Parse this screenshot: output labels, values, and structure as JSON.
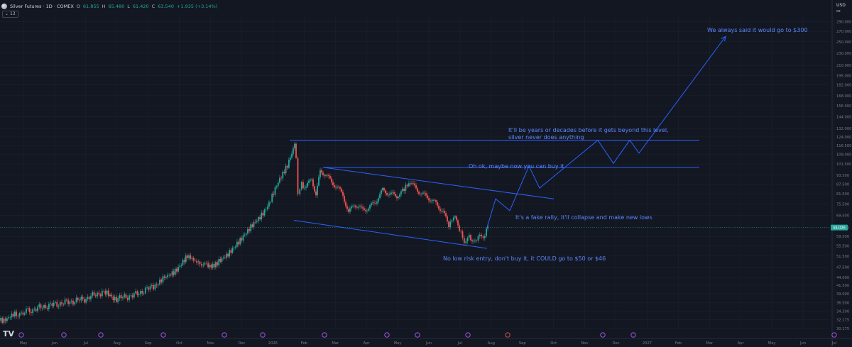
{
  "legend": {
    "title": "Silver Futures · 1D · COMEX",
    "o_label": "O",
    "o_value": "61.855",
    "h_label": "H",
    "h_value": "65.480",
    "l_label": "L",
    "l_value": "61.420",
    "c_label": "C",
    "c_value": "63.540",
    "change": "+1.935 (+3.14%)"
  },
  "volume_pill": "13",
  "price_axis": {
    "currency": "USD",
    "unit": "oz",
    "last_price_label": "SILO26"
  },
  "colors": {
    "background": "#131722",
    "up": "#26a69a",
    "down": "#ef5350",
    "annotation": "#2962ff",
    "annotation_text": "#5b87ff",
    "axis_text": "#787b86",
    "grid": "#1e222d",
    "event_marker": "#b45cff"
  },
  "chart_data": {
    "type": "candlestick",
    "title": "Silver Futures · 1D · COMEX",
    "y_scale": "log",
    "ylim": [
      30.175,
      300.0
    ],
    "y_ticks": [
      30.175,
      32.175,
      34.3,
      36.5,
      39.0,
      41.5,
      44.0,
      47.5,
      51.5,
      55.5,
      59.5,
      63.5,
      69.5,
      75.5,
      81.5,
      87.5,
      93.5,
      101.5,
      109.0,
      116.5,
      124.0,
      132.0,
      144.0,
      156.0,
      168.0,
      182.0,
      195.0,
      210.0,
      230.0,
      250.0,
      270.0,
      290.0
    ],
    "x_ticks": [
      "May",
      "Jun",
      "Jul",
      "Aug",
      "Sep",
      "Oct",
      "Nov",
      "Dec",
      "2026",
      "Feb",
      "Mar",
      "Apr",
      "May",
      "Jun",
      "Jul",
      "Aug",
      "Sep",
      "Oct",
      "Nov",
      "Dec",
      "2027",
      "Feb",
      "Mar",
      "Apr",
      "May",
      "Jun",
      "Jul"
    ],
    "last_price": 63.54,
    "price_path": [
      [
        0,
        32.0
      ],
      [
        22,
        33.3
      ],
      [
        45,
        34.6
      ],
      [
        70,
        35.8
      ],
      [
        95,
        36.6
      ],
      [
        120,
        37.5
      ],
      [
        145,
        39.5
      ],
      [
        165,
        37.6
      ],
      [
        190,
        38.6
      ],
      [
        215,
        41.0
      ],
      [
        235,
        44.0
      ],
      [
        250,
        47.0
      ],
      [
        265,
        51.0
      ],
      [
        278,
        49.5
      ],
      [
        292,
        48.0
      ],
      [
        305,
        48.6
      ],
      [
        320,
        51.2
      ],
      [
        335,
        57.0
      ],
      [
        350,
        61.5
      ],
      [
        365,
        68.0
      ],
      [
        380,
        76.0
      ],
      [
        395,
        90.0
      ],
      [
        408,
        104.0
      ],
      [
        414,
        117.0
      ],
      [
        416,
        119.5
      ],
      [
        418,
        106.0
      ],
      [
        421,
        80.0
      ],
      [
        426,
        88.0
      ],
      [
        432,
        86.0
      ],
      [
        440,
        92.0
      ],
      [
        446,
        81.0
      ],
      [
        452,
        96.0
      ],
      [
        460,
        94.0
      ],
      [
        468,
        88.0
      ],
      [
        476,
        85.0
      ],
      [
        484,
        80.0
      ],
      [
        492,
        70.0
      ],
      [
        500,
        75.0
      ],
      [
        510,
        72.0
      ],
      [
        520,
        73.0
      ],
      [
        530,
        77.0
      ],
      [
        540,
        84.0
      ],
      [
        550,
        82.0
      ],
      [
        560,
        81.0
      ],
      [
        568,
        84.0
      ],
      [
        577,
        88.0
      ],
      [
        585,
        85.0
      ],
      [
        595,
        81.0
      ],
      [
        605,
        79.0
      ],
      [
        615,
        76.0
      ],
      [
        625,
        72.0
      ],
      [
        633,
        65.0
      ],
      [
        640,
        69.0
      ],
      [
        648,
        62.0
      ],
      [
        655,
        58.0
      ],
      [
        662,
        59.0
      ],
      [
        670,
        57.0
      ],
      [
        677,
        59.0
      ],
      [
        684,
        61.0
      ],
      [
        688,
        63.54
      ]
    ],
    "annotations": [
      {
        "text": "We always said it would go to $300"
      },
      {
        "text": "It'll be years or decades before it gets beyond this level,"
      },
      {
        "text": "silver never does anything"
      },
      {
        "text": "Oh ok, maybe now you can buy it"
      },
      {
        "text": "It's a fake rally, it'll collapse and make new lows"
      },
      {
        "text": "No low risk entry, don't buy it, it COULD go to $50 or $46"
      }
    ],
    "levels": [
      121.0,
      99.0
    ],
    "channel": {
      "upper": [
        [
          455,
          99.0
        ],
        [
          780,
          78.5
        ]
      ],
      "lower": [
        [
          414,
          67.0
        ],
        [
          686,
          54.5
        ]
      ]
    },
    "projected_path": [
      [
        686,
        63.5
      ],
      [
        698,
        78.5
      ],
      [
        718,
        72.0
      ],
      [
        745,
        100.0
      ],
      [
        760,
        85.0
      ],
      [
        842,
        121.0
      ],
      [
        864,
        102.0
      ],
      [
        887,
        121.0
      ],
      [
        900,
        110.0
      ],
      [
        1022,
        260.0
      ]
    ],
    "event_markers_x": [
      30,
      90,
      142,
      230,
      316,
      370,
      457,
      545,
      588,
      659,
      715,
      849,
      892,
      1175
    ]
  }
}
